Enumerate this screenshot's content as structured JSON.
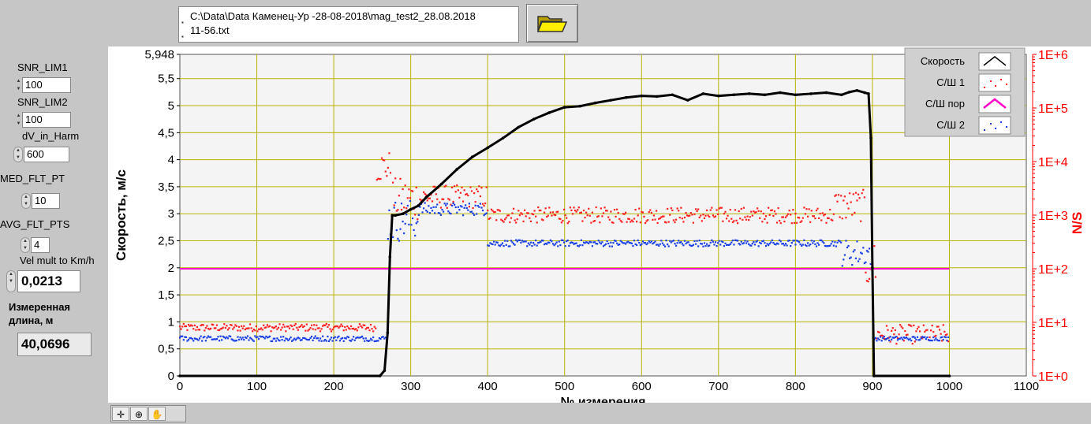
{
  "file_path": {
    "line1": "C:\\Data\\Data Каменец-Ур -28-08-2018\\mag_test2_28.08.2018",
    "line2": "11-56.txt"
  },
  "controls": {
    "snr_lim1": {
      "label": "SNR_LIM1",
      "value": "100"
    },
    "snr_lim2": {
      "label": "SNR_LIM2",
      "value": "100"
    },
    "dv_in_harm": {
      "label": "dV_in_Harm",
      "value": "600"
    },
    "med_flt_pt": {
      "label": "MED_FLT_PT",
      "value": "10"
    },
    "avg_flt_pts": {
      "label": "AVG_FLT_PTS",
      "value": "4"
    },
    "vel_mult": {
      "label": "Vel mult to Km/h",
      "value": "0,0213"
    },
    "measured_length": {
      "label1": "Измеренная",
      "label2": "длина, м",
      "value": "40,0696"
    }
  },
  "icons": [
    "folder-icon",
    "crosshair-icon",
    "zoom-icon",
    "pan-hand-icon"
  ],
  "chart_data": {
    "type": "scatter",
    "xlabel": "№ измерения",
    "ylabel": "Скорость, м/с",
    "y2label": "N/S",
    "xlim": [
      0,
      1100
    ],
    "ylim": [
      0,
      5.948
    ],
    "y2lim_log": [
      1,
      1000000
    ],
    "x_ticks": [
      "0",
      "100",
      "200",
      "300",
      "400",
      "500",
      "600",
      "700",
      "800",
      "900",
      "1000",
      "1100"
    ],
    "y_ticks": [
      {
        "v": 0,
        "t": "0"
      },
      {
        "v": 0.5,
        "t": "0,5"
      },
      {
        "v": 1,
        "t": "1"
      },
      {
        "v": 1.5,
        "t": "1,5"
      },
      {
        "v": 2,
        "t": "2"
      },
      {
        "v": 2.5,
        "t": "2,5"
      },
      {
        "v": 3,
        "t": "3"
      },
      {
        "v": 3.5,
        "t": "3,5"
      },
      {
        "v": 4,
        "t": "4"
      },
      {
        "v": 4.5,
        "t": "4,5"
      },
      {
        "v": 5,
        "t": "5"
      },
      {
        "v": 5.5,
        "t": "5,5"
      },
      {
        "v": 5.948,
        "t": "5,948"
      }
    ],
    "y2_ticks": [
      "1E+0",
      "1E+1",
      "1E+2",
      "1E+3",
      "1E+4",
      "1E+5",
      "1E+6"
    ],
    "grid": true,
    "legend": [
      {
        "name": "Скорость",
        "color": "#000000",
        "style": "line-points"
      },
      {
        "name": "С/Ш 1",
        "color": "#ff2020",
        "style": "points"
      },
      {
        "name": "С/Ш пор",
        "color": "#ff00c8",
        "style": "line"
      },
      {
        "name": "С/Ш 2",
        "color": "#1a3fe6",
        "style": "points"
      }
    ],
    "legend_position": "top-right",
    "colors": {
      "grid": "#b8b400",
      "plot_bg": "#f4f4f4",
      "y2_axis": "#ff0000"
    },
    "speed": {
      "x": [
        0,
        260,
        266,
        270,
        273,
        276,
        280,
        290,
        300,
        310,
        320,
        340,
        360,
        380,
        400,
        420,
        440,
        460,
        480,
        500,
        520,
        540,
        560,
        580,
        600,
        620,
        640,
        660,
        680,
        700,
        720,
        740,
        760,
        780,
        800,
        820,
        840,
        860,
        870,
        880,
        890,
        895,
        898,
        900,
        902,
        1000
      ],
      "y": [
        0.0,
        0.0,
        0.1,
        0.8,
        2.2,
        2.97,
        2.97,
        3.0,
        3.08,
        3.15,
        3.3,
        3.55,
        3.82,
        4.05,
        4.22,
        4.4,
        4.6,
        4.75,
        4.87,
        4.97,
        4.99,
        5.05,
        5.1,
        5.15,
        5.18,
        5.17,
        5.2,
        5.1,
        5.22,
        5.18,
        5.2,
        5.22,
        5.2,
        5.24,
        5.2,
        5.22,
        5.24,
        5.2,
        5.25,
        5.28,
        5.24,
        5.22,
        4.4,
        2.0,
        0.0,
        0.0
      ]
    },
    "threshold_ns": 100,
    "snr1_profile": [
      {
        "x0": 0,
        "x1": 255,
        "ns": 8,
        "spread": 0.07
      },
      {
        "x0": 255,
        "x1": 275,
        "ns": 8000,
        "spread": 0.3
      },
      {
        "x0": 275,
        "x1": 315,
        "ns": 2000,
        "spread": 0.4
      },
      {
        "x0": 315,
        "x1": 400,
        "ns": 2200,
        "spread": 0.22
      },
      {
        "x0": 400,
        "x1": 850,
        "ns": 1000,
        "spread": 0.15
      },
      {
        "x0": 850,
        "x1": 890,
        "ns": 1500,
        "spread": 0.3
      },
      {
        "x0": 890,
        "x1": 905,
        "ns": 150,
        "spread": 0.6
      },
      {
        "x0": 905,
        "x1": 1000,
        "ns": 6,
        "spread": 0.18
      }
    ],
    "snr2_profile": [
      {
        "x0": 0,
        "x1": 270,
        "ns": 5,
        "spread": 0.05
      },
      {
        "x0": 270,
        "x1": 310,
        "ns": 800,
        "spread": 0.4
      },
      {
        "x0": 310,
        "x1": 400,
        "ns": 1300,
        "spread": 0.12
      },
      {
        "x0": 400,
        "x1": 860,
        "ns": 300,
        "spread": 0.06
      },
      {
        "x0": 860,
        "x1": 900,
        "ns": 200,
        "spread": 0.25
      },
      {
        "x0": 900,
        "x1": 1000,
        "ns": 5,
        "spread": 0.04
      }
    ]
  }
}
